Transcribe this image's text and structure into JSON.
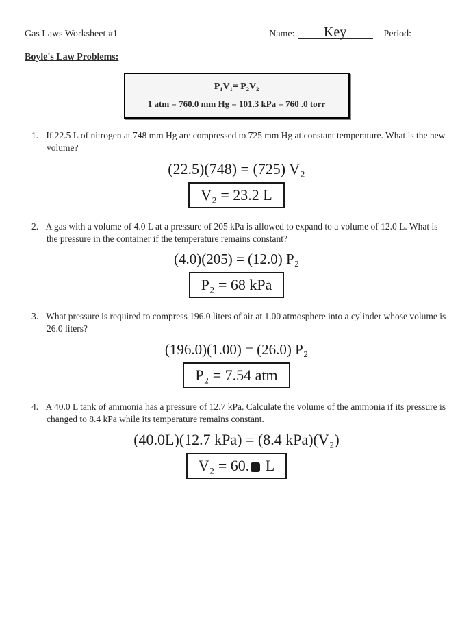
{
  "header": {
    "title": "Gas Laws Worksheet #1",
    "name_label": "Name:",
    "name_value": "Key",
    "period_label": "Period:"
  },
  "section_heading": "Boyle's Law Problems:",
  "formula": {
    "law": "P₁V₁= P₂V₂",
    "conversion": "1 atm  =  760.0 mm Hg  = 101.3 kPa = 760 .0 torr"
  },
  "problems": [
    {
      "num": "1.",
      "text": "If 22.5 L of nitrogen at 748 mm Hg are compressed to 725 mm Hg at constant temperature. What is the new volume?",
      "work": "(22.5)(748) = (725) V₂",
      "answer": "V₂ = 23.2 L"
    },
    {
      "num": "2.",
      "text": "A gas with a volume of 4.0 L at a pressure of 205 kPa is allowed to expand to a volume of 12.0 L. What is the pressure in the container if the temperature remains constant?",
      "work": "(4.0)(205) = (12.0) P₂",
      "answer": "P₂ = 68 kPa"
    },
    {
      "num": "3.",
      "text": "What pressure is required to compress 196.0 liters of air at 1.00 atmosphere into a cylinder whose volume is 26.0 liters?",
      "work": "(196.0)(1.00) = (26.0) P₂",
      "answer": "P₂ = 7.54 atm"
    },
    {
      "num": "4.",
      "text": "A 40.0 L tank of ammonia has a pressure of 12.7 kPa. Calculate the volume of the ammonia if its pressure is changed to 8.4 kPa while its temperature remains constant.",
      "work": "(40.0L)(12.7 kPa) = (8.4 kPa)(V₂)",
      "answer_prefix": "V₂ = 60.",
      "answer_suffix": " L"
    }
  ]
}
